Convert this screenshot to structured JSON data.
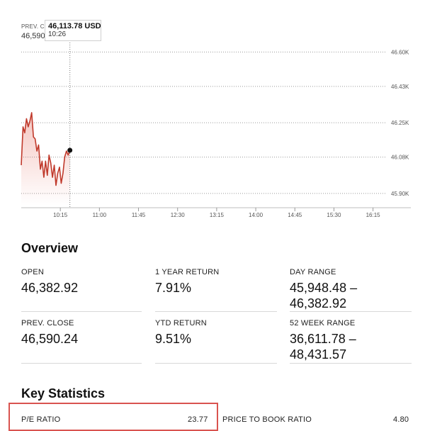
{
  "chart": {
    "tooltip": {
      "prev_label": "PREV. C",
      "prev_value": "46,590",
      "price": "46,113.78 USD",
      "time": "10:26"
    }
  },
  "chart_data": {
    "type": "line",
    "x_ticks": [
      "10:15",
      "11:00",
      "11:45",
      "12:30",
      "13:15",
      "14:00",
      "14:45",
      "15:30",
      "16:15"
    ],
    "y_ticks": [
      "46.60K",
      "46.43K",
      "46.25K",
      "46.08K",
      "45.90K"
    ],
    "ylim": [
      45840,
      46640
    ],
    "prev_close": 46590.24,
    "hover_time": "10:26",
    "hover_value": 46113.78,
    "series": [
      {
        "x": [
          "09:30",
          "09:32",
          "09:34",
          "09:36",
          "09:38",
          "09:40",
          "09:42",
          "09:44",
          "09:46",
          "09:48",
          "09:50",
          "09:52",
          "09:54",
          "09:56",
          "09:58",
          "10:00",
          "10:02",
          "10:04",
          "10:06",
          "10:08",
          "10:10",
          "10:12",
          "10:14",
          "10:16",
          "10:18",
          "10:20",
          "10:22",
          "10:24",
          "10:26"
        ],
        "values": [
          46040,
          46230,
          46200,
          46270,
          46230,
          46260,
          46300,
          46180,
          46170,
          46110,
          46140,
          46020,
          46060,
          45980,
          46060,
          45990,
          46090,
          46050,
          45980,
          46040,
          45940,
          46000,
          46030,
          45950,
          46000,
          46080,
          46110,
          46090,
          46113.78
        ],
        "color": "#c0392b"
      }
    ],
    "grid": "horizontal-dotted"
  },
  "overview": {
    "title": "Overview",
    "stats": [
      {
        "label": "OPEN",
        "value": "46,382.92"
      },
      {
        "label": "1 YEAR RETURN",
        "value": "7.91%"
      },
      {
        "label": "DAY RANGE",
        "value": "45,948.48 –\n46,382.92"
      },
      {
        "label": "PREV. CLOSE",
        "value": "46,590.24"
      },
      {
        "label": "YTD RETURN",
        "value": "9.51%"
      },
      {
        "label": "52 WEEK RANGE",
        "value": "36,611.78 –\n48,431.57"
      }
    ]
  },
  "key_statistics": {
    "title": "Key Statistics",
    "pe_label": "P/E RATIO",
    "pe_value": "23.77",
    "pb_label": "PRICE TO BOOK RATIO",
    "pb_value": "4.80"
  },
  "colors": {
    "line": "#c0392b",
    "highlight": "#d9534f"
  }
}
